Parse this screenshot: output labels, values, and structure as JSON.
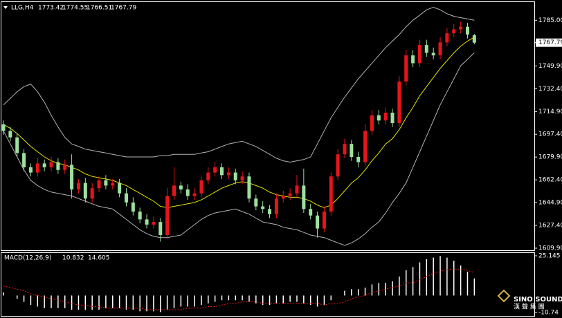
{
  "chart_data": [
    {
      "type": "candlestick",
      "title": "LLG,H4",
      "open": [
        1705,
        1700,
        1695,
        1683,
        1672,
        1668,
        1675,
        1672,
        1676,
        1670,
        1674,
        1655,
        1660,
        1648,
        1656,
        1662,
        1658,
        1660,
        1652,
        1645,
        1638,
        1632,
        1628,
        1630,
        1620,
        1650,
        1658,
        1655,
        1650,
        1652,
        1662,
        1668,
        1672,
        1666,
        1668,
        1662,
        1665,
        1648,
        1642,
        1640,
        1636,
        1648,
        1650,
        1652,
        1658,
        1640,
        1635,
        1625,
        1638,
        1665,
        1682,
        1690,
        1680,
        1676,
        1700,
        1712,
        1708,
        1714,
        1706,
        1738,
        1758,
        1752,
        1766,
        1760,
        1758,
        1768,
        1775,
        1778,
        1780,
        1773.42
      ],
      "high": [
        1708,
        1703,
        1698,
        1686,
        1675,
        1679,
        1678,
        1680,
        1679,
        1678,
        1682,
        1663,
        1664,
        1660,
        1665,
        1666,
        1663,
        1663,
        1656,
        1649,
        1641,
        1636,
        1634,
        1633,
        1656,
        1672,
        1661,
        1659,
        1656,
        1665,
        1672,
        1676,
        1675,
        1672,
        1671,
        1669,
        1668,
        1651,
        1646,
        1643,
        1652,
        1654,
        1656,
        1666,
        1671,
        1644,
        1638,
        1642,
        1668,
        1686,
        1694,
        1693,
        1684,
        1705,
        1716,
        1716,
        1718,
        1717,
        1742,
        1762,
        1762,
        1770,
        1770,
        1764,
        1772,
        1779,
        1782,
        1784,
        1783,
        1774.55
      ],
      "low": [
        1697,
        1692,
        1680,
        1669,
        1665,
        1665,
        1669,
        1669,
        1667,
        1667,
        1648,
        1652,
        1645,
        1645,
        1653,
        1655,
        1655,
        1649,
        1642,
        1635,
        1629,
        1625,
        1625,
        1615,
        1617,
        1647,
        1652,
        1647,
        1647,
        1649,
        1659,
        1665,
        1663,
        1663,
        1659,
        1659,
        1645,
        1639,
        1637,
        1633,
        1633,
        1645,
        1647,
        1649,
        1637,
        1632,
        1618,
        1622,
        1635,
        1662,
        1679,
        1677,
        1672,
        1673,
        1697,
        1705,
        1705,
        1703,
        1703,
        1735,
        1749,
        1749,
        1757,
        1755,
        1755,
        1765,
        1772,
        1775,
        1771,
        1766.51
      ],
      "close": [
        1700,
        1695,
        1683,
        1672,
        1668,
        1675,
        1672,
        1676,
        1670,
        1674,
        1655,
        1660,
        1648,
        1656,
        1662,
        1658,
        1660,
        1652,
        1645,
        1638,
        1632,
        1628,
        1630,
        1620,
        1650,
        1658,
        1655,
        1650,
        1652,
        1662,
        1668,
        1672,
        1666,
        1668,
        1662,
        1665,
        1648,
        1642,
        1640,
        1636,
        1648,
        1650,
        1652,
        1658,
        1640,
        1635,
        1625,
        1638,
        1665,
        1682,
        1690,
        1680,
        1676,
        1700,
        1712,
        1708,
        1714,
        1706,
        1738,
        1758,
        1752,
        1766,
        1760,
        1758,
        1768,
        1775,
        1778,
        1780,
        1774,
        1767.79
      ],
      "up_color": "#e8141b",
      "down_color": "#9ee09e",
      "overlays": [
        {
          "color": "#e6e600",
          "values": [
            1705,
            1702,
            1698,
            1693,
            1688,
            1684,
            1680,
            1677,
            1675,
            1674,
            1672,
            1670,
            1667,
            1665,
            1664,
            1663,
            1662,
            1660,
            1658,
            1655,
            1652,
            1649,
            1646,
            1642,
            1641,
            1642,
            1643,
            1644,
            1645,
            1647,
            1650,
            1653,
            1656,
            1658,
            1660,
            1661,
            1660,
            1658,
            1656,
            1653,
            1651,
            1650,
            1649,
            1649,
            1648,
            1646,
            1643,
            1641,
            1643,
            1648,
            1654,
            1660,
            1664,
            1670,
            1677,
            1683,
            1690,
            1694,
            1701,
            1710,
            1718,
            1727,
            1734,
            1741,
            1748,
            1754,
            1760,
            1765,
            1769,
            1772
          ]
        },
        {
          "color": "#b4b4b4",
          "values": [
            1720,
            1725,
            1730,
            1734,
            1736,
            1730,
            1722,
            1712,
            1703,
            1695,
            1690,
            1688,
            1686,
            1685,
            1684,
            1683,
            1682,
            1681,
            1680,
            1680,
            1680,
            1680,
            1680,
            1681,
            1681,
            1682,
            1682,
            1682,
            1682,
            1683,
            1684,
            1686,
            1688,
            1690,
            1691,
            1692,
            1690,
            1688,
            1685,
            1682,
            1679,
            1677,
            1676,
            1677,
            1678,
            1680,
            1690,
            1700,
            1710,
            1718,
            1726,
            1733,
            1740,
            1746,
            1752,
            1758,
            1764,
            1769,
            1774,
            1780,
            1785,
            1789,
            1793,
            1795,
            1793,
            1790,
            1788,
            1787,
            1786,
            1785
          ]
        },
        {
          "color": "#b4b4b4",
          "values": [
            1700,
            1690,
            1680,
            1670,
            1662,
            1658,
            1655,
            1653,
            1652,
            1651,
            1650,
            1648,
            1646,
            1644,
            1642,
            1641,
            1640,
            1636,
            1632,
            1628,
            1624,
            1621,
            1619,
            1618,
            1618,
            1619,
            1620,
            1624,
            1628,
            1632,
            1635,
            1637,
            1638,
            1639,
            1640,
            1638,
            1636,
            1633,
            1630,
            1629,
            1628,
            1626,
            1625,
            1624,
            1622,
            1620,
            1619,
            1618,
            1616,
            1614,
            1612,
            1614,
            1617,
            1621,
            1626,
            1630,
            1637,
            1645,
            1652,
            1660,
            1672,
            1684,
            1696,
            1708,
            1720,
            1730,
            1740,
            1750,
            1755,
            1760
          ]
        }
      ],
      "ylim": [
        1608.3,
        1797.9
      ],
      "yticks": [
        {
          "value": 1785,
          "label": "1785.00"
        },
        {
          "value": 1749.9,
          "label": "1749.90"
        },
        {
          "value": 1732.4,
          "label": "1732.40"
        },
        {
          "value": 1714.9,
          "label": "1714.90"
        },
        {
          "value": 1697.4,
          "label": "1697.40"
        },
        {
          "value": 1679.9,
          "label": "1679.90"
        },
        {
          "value": 1662.4,
          "label": "1662.40"
        },
        {
          "value": 1644.9,
          "label": "1644.90"
        },
        {
          "value": 1627.4,
          "label": "1627.40"
        },
        {
          "value": 1609.9,
          "label": "1609.90"
        }
      ]
    },
    {
      "type": "macd",
      "title": "MACD(12,26,9)",
      "values": [
        2,
        0,
        -2,
        -4,
        -6,
        -7,
        -8,
        -8,
        -8,
        -8,
        -9,
        -9,
        -9,
        -9,
        -9,
        -8,
        -8,
        -8,
        -9,
        -9,
        -10,
        -10,
        -10,
        -10.5,
        -9,
        -8,
        -7,
        -7,
        -7,
        -6,
        -5,
        -4,
        -3,
        -3,
        -3,
        -3,
        -4,
        -5,
        -6,
        -6,
        -5,
        -5,
        -4,
        -4,
        -5,
        -6,
        -7,
        -6,
        -3,
        0,
        3,
        4,
        4,
        5,
        7,
        8,
        8,
        9,
        12,
        16,
        18,
        21,
        23,
        24,
        25,
        24,
        22,
        19,
        15,
        10.832
      ],
      "signal": [
        6,
        5,
        4,
        3,
        1,
        0,
        -1,
        -2,
        -3,
        -4,
        -5,
        -6,
        -6,
        -7,
        -7,
        -8,
        -8,
        -8,
        -8,
        -8,
        -8,
        -9,
        -9,
        -9,
        -9,
        -9,
        -9,
        -8,
        -8,
        -8,
        -7,
        -7,
        -6,
        -5,
        -5,
        -4,
        -4,
        -4,
        -5,
        -5,
        -5,
        -5,
        -5,
        -5,
        -5,
        -5,
        -5,
        -6,
        -5,
        -5,
        -4,
        -2,
        -1,
        0,
        2,
        3,
        4,
        5,
        6,
        8,
        8,
        10,
        12,
        14,
        15.5,
        16.5,
        16.8,
        16.6,
        15.8,
        14.605
      ],
      "color": "#ffffff",
      "signal_color": "#e8141b",
      "ylim": [
        -10.74,
        25.145
      ],
      "yticks": [
        25.145,
        -10.74
      ]
    }
  ],
  "watermark": {
    "text": "SINO SOUND",
    "subtext": "漢 聲 集 團"
  }
}
